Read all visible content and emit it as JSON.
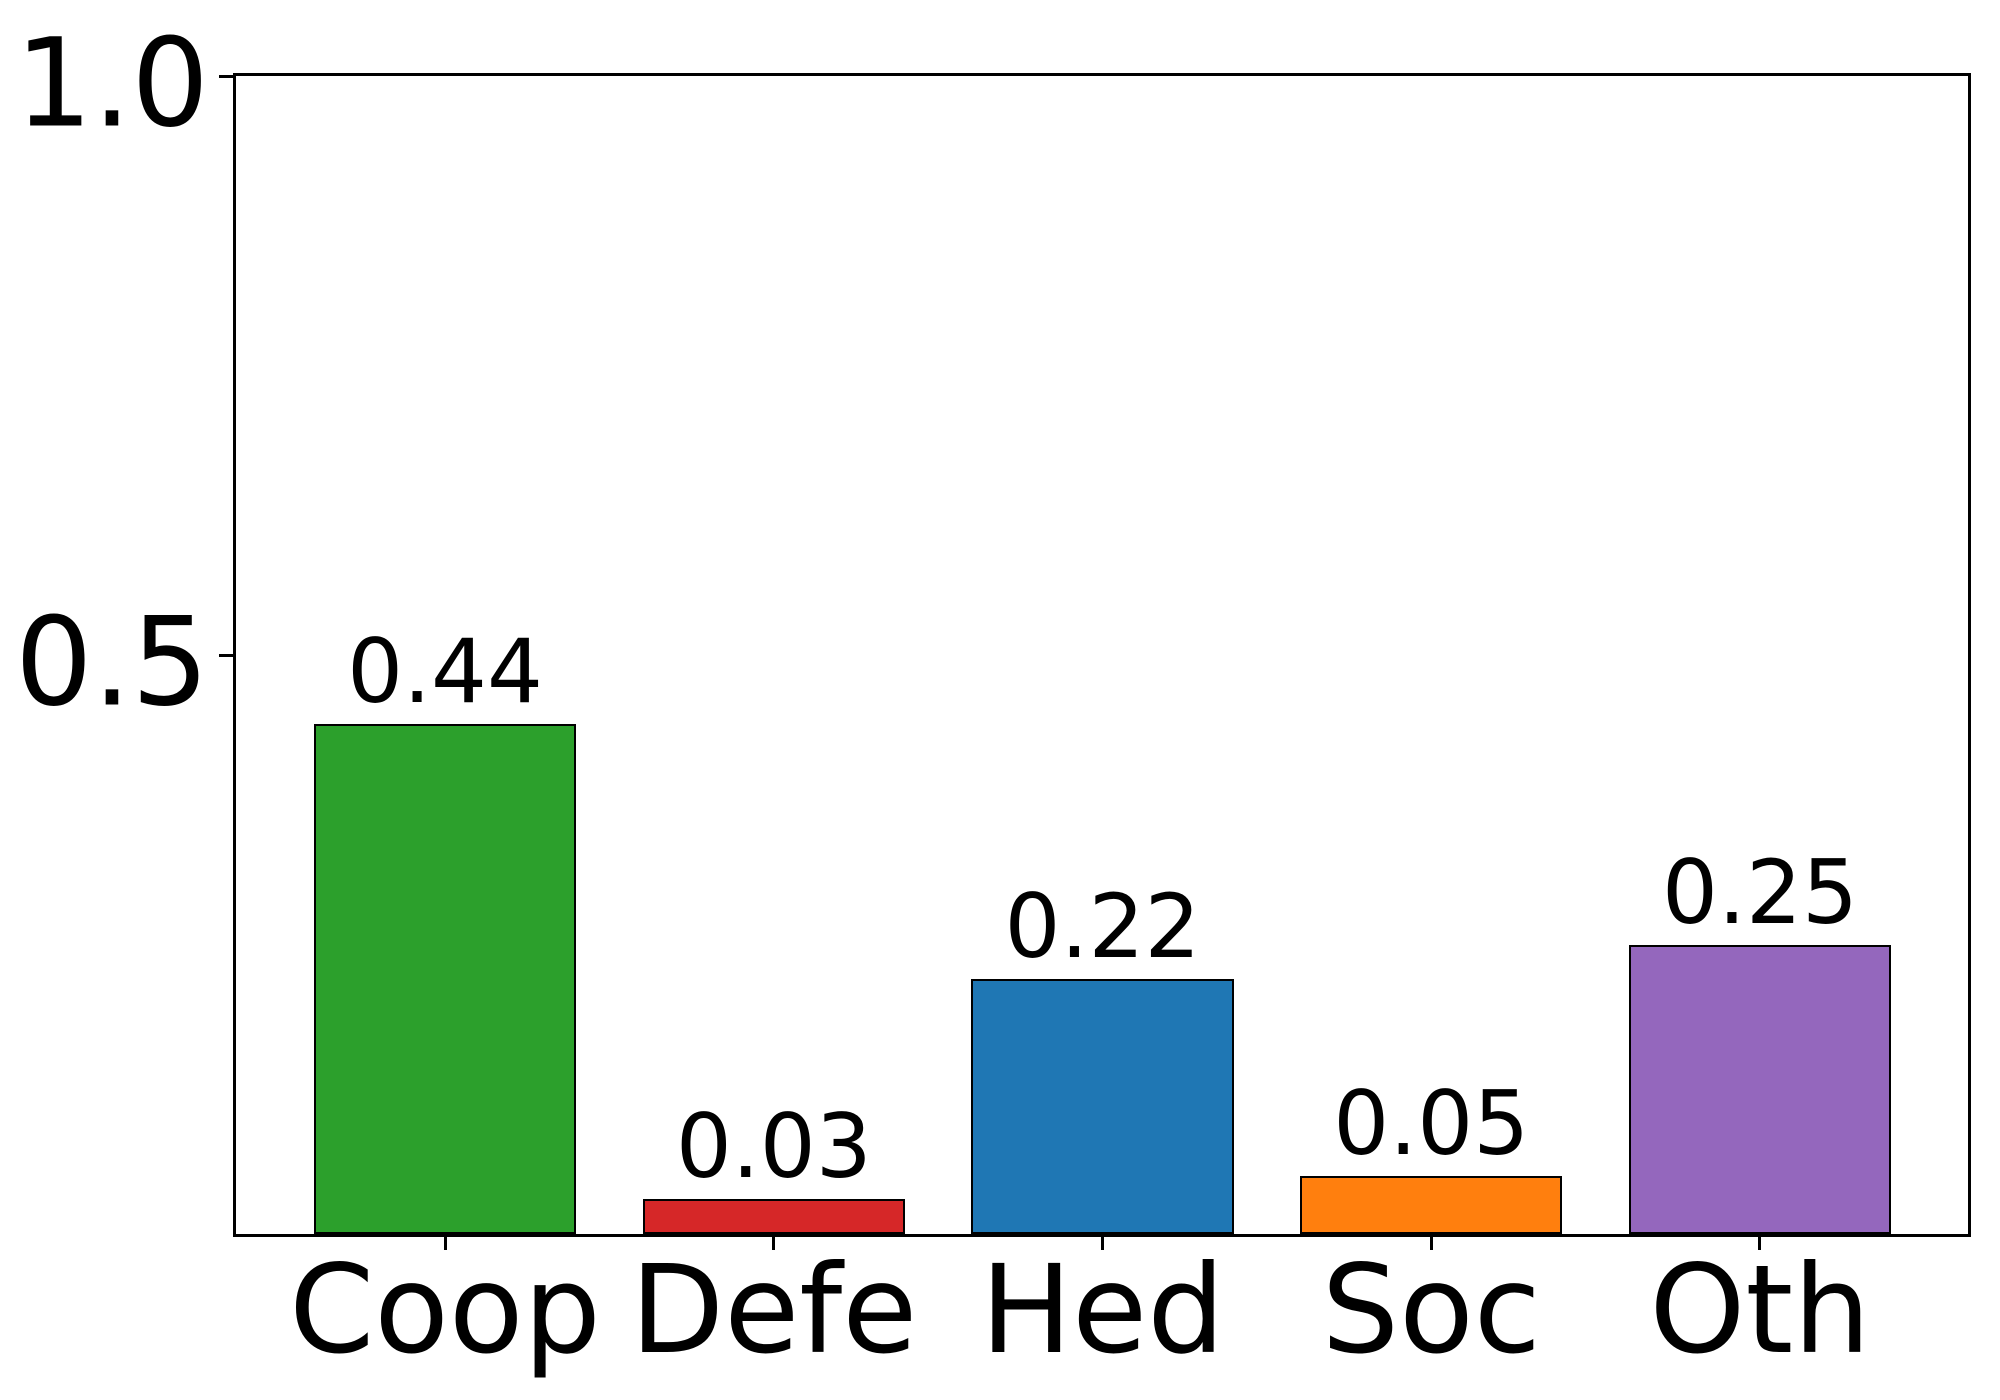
{
  "chart_data": {
    "type": "bar",
    "title": "",
    "xlabel": "",
    "ylabel": "",
    "categories": [
      "Coop",
      "Defe",
      "Hed",
      "Soc",
      "Oth"
    ],
    "values": [
      0.44,
      0.03,
      0.22,
      0.05,
      0.25
    ],
    "value_labels": [
      "0.44",
      "0.03",
      "0.22",
      "0.05",
      "0.25"
    ],
    "bar_colors": [
      "#2ca02c",
      "#d62728",
      "#1f77b4",
      "#ff7f0e",
      "#9467bd"
    ],
    "bar_edge_color": "#000000",
    "axis_color": "#000000",
    "text_color": "#000000",
    "background_color": "#ffffff",
    "ylim": [
      0.0,
      1.0
    ],
    "yticks": [
      {
        "value": 1.0,
        "label": "1.0"
      },
      {
        "value": 0.5,
        "label": "0.5"
      }
    ],
    "grid": false,
    "legend": null
  }
}
